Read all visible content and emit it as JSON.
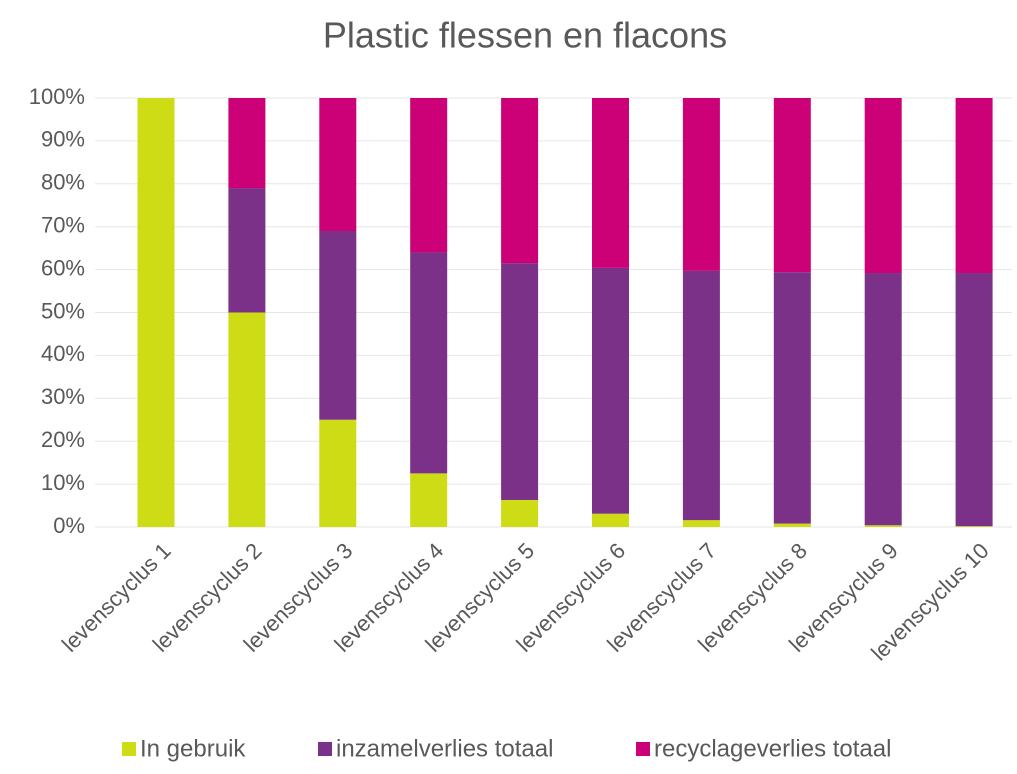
{
  "chart_data": {
    "type": "stacked_bar",
    "title": "Plastic flessen en flacons",
    "categories": [
      "levenscyclus 1",
      "levenscyclus 2",
      "levenscyclus 3",
      "levenscyclus 4",
      "levenscyclus 5",
      "levenscyclus 6",
      "levenscyclus 7",
      "levenscyclus 8",
      "levenscyclus 9",
      "levenscyclus 10"
    ],
    "series": [
      {
        "name": "In gebruik",
        "color": "#cddc14",
        "values": [
          100,
          50,
          25,
          12.5,
          6.3,
          3.1,
          1.6,
          0.8,
          0.4,
          0.2
        ]
      },
      {
        "name": "inzamelverlies totaal",
        "color": "#7b3187",
        "values": [
          0,
          29,
          44,
          51.5,
          55.2,
          57.3,
          58.1,
          58.6,
          58.8,
          59
        ]
      },
      {
        "name": "recyclageverlies totaal",
        "color": "#cc0077",
        "values": [
          0,
          21,
          31,
          36,
          38.5,
          39.6,
          40.3,
          40.6,
          40.8,
          40.8
        ]
      }
    ],
    "ylim": [
      0,
      100
    ],
    "yticks": [
      {
        "value": 0,
        "label": "0%"
      },
      {
        "value": 10,
        "label": "10%"
      },
      {
        "value": 20,
        "label": "20%"
      },
      {
        "value": 30,
        "label": "30%"
      },
      {
        "value": 40,
        "label": "40%"
      },
      {
        "value": 50,
        "label": "50%"
      },
      {
        "value": 60,
        "label": "60%"
      },
      {
        "value": 70,
        "label": "70%"
      },
      {
        "value": 80,
        "label": "80%"
      },
      {
        "value": 90,
        "label": "90%"
      },
      {
        "value": 100,
        "label": "100%"
      }
    ],
    "grid": true,
    "legend": "bottom"
  }
}
